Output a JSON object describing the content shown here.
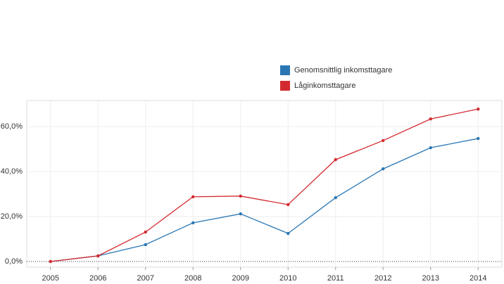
{
  "chart_data": {
    "type": "line",
    "categories": [
      "2005",
      "2006",
      "2007",
      "2008",
      "2009",
      "2010",
      "2011",
      "2012",
      "2013",
      "2014"
    ],
    "series": [
      {
        "name": "Genomsnittlig inkomsttagare",
        "color": "#2a77b4",
        "values": [
          0,
          2.5,
          7.5,
          17.2,
          21.2,
          12.5,
          28.4,
          41.2,
          50.6,
          54.7
        ]
      },
      {
        "name": "Låginkomsttagare",
        "color": "#d32a2f",
        "values": [
          0,
          2.5,
          13.1,
          28.8,
          29.1,
          25.3,
          45.3,
          53.8,
          63.4,
          67.8
        ]
      }
    ],
    "ylim": [
      -2.5,
      71.6
    ],
    "yticks": [
      {
        "value": 0,
        "label": "0,0%"
      },
      {
        "value": 20,
        "label": "20,0%"
      },
      {
        "value": 40,
        "label": "40,0%"
      },
      {
        "value": 60,
        "label": "60,0%"
      }
    ],
    "grid": true
  }
}
